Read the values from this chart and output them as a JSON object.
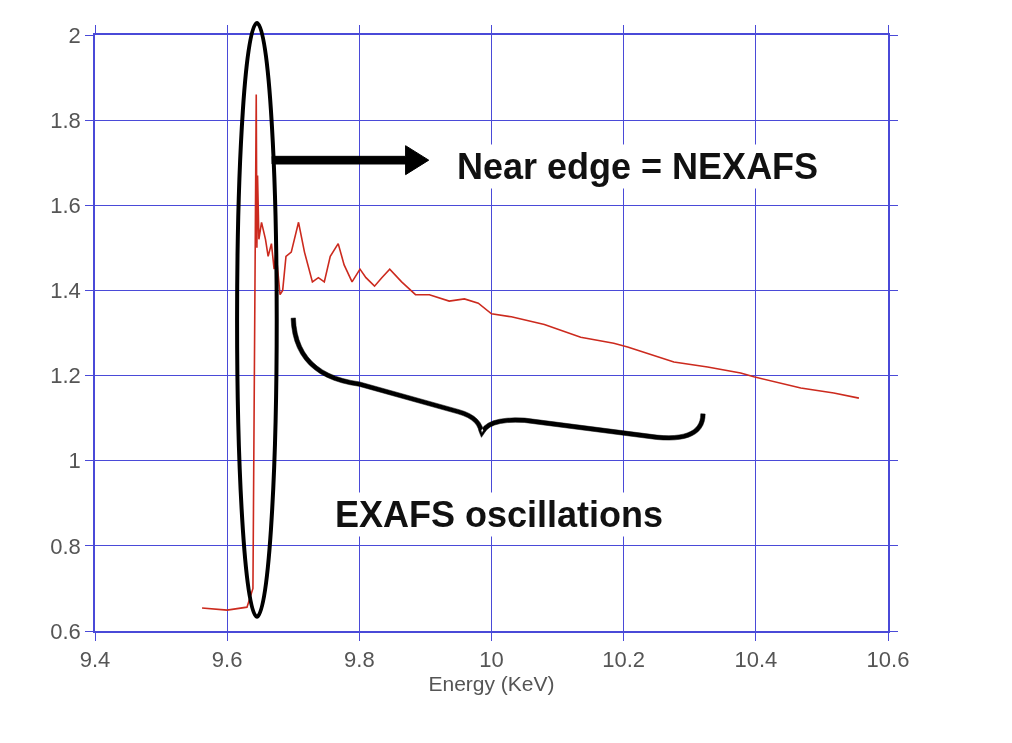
{
  "chart_data": {
    "type": "line",
    "xlabel": "Energy (KeV)",
    "xlim": [
      9.4,
      10.6
    ],
    "xticks": [
      9.4,
      9.6,
      9.8,
      10,
      10.2,
      10.4,
      10.6
    ],
    "ylim": [
      0.6,
      2.0
    ],
    "yticks": [
      0.6,
      0.8,
      1,
      1.2,
      1.4,
      1.6,
      1.8,
      2
    ],
    "grid": true,
    "marker": "none",
    "line_style": "solid",
    "annotations": [
      "Near edge = NEXAFS",
      "EXAFS oscillations"
    ],
    "series": [
      {
        "color": "#cc2a1e",
        "x": [
          9.562,
          9.6,
          9.63,
          9.639,
          9.644,
          9.645,
          9.646,
          9.648,
          9.652,
          9.658,
          9.662,
          9.667,
          9.671,
          9.674,
          9.68,
          9.684,
          9.689,
          9.697,
          9.708,
          9.717,
          9.729,
          9.738,
          9.747,
          9.756,
          9.768,
          9.777,
          9.789,
          9.801,
          9.81,
          9.823,
          9.834,
          9.846,
          9.864,
          9.885,
          9.906,
          9.936,
          9.959,
          9.98,
          10.0,
          10.03,
          10.08,
          10.135,
          10.185,
          10.206,
          10.276,
          10.327,
          10.377,
          10.397,
          10.468,
          10.518,
          10.556
        ],
        "values": [
          0.654,
          0.649,
          0.656,
          0.7,
          1.86,
          1.5,
          1.67,
          1.52,
          1.56,
          1.52,
          1.48,
          1.51,
          1.45,
          1.49,
          1.39,
          1.4,
          1.48,
          1.49,
          1.56,
          1.49,
          1.42,
          1.43,
          1.42,
          1.48,
          1.51,
          1.46,
          1.42,
          1.45,
          1.43,
          1.41,
          1.43,
          1.45,
          1.42,
          1.39,
          1.39,
          1.375,
          1.38,
          1.37,
          1.345,
          1.338,
          1.32,
          1.29,
          1.276,
          1.267,
          1.232,
          1.22,
          1.206,
          1.197,
          1.171,
          1.159,
          1.147
        ]
      }
    ]
  }
}
